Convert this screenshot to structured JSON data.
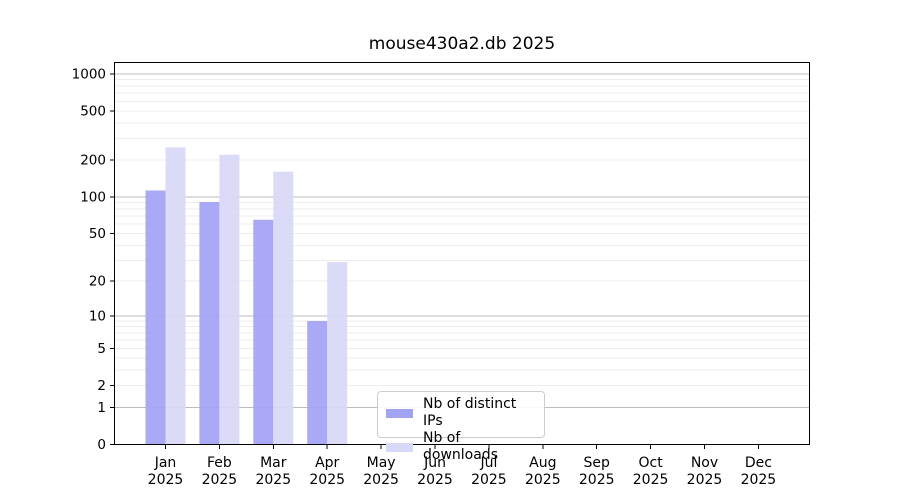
{
  "chart_data": {
    "type": "bar",
    "title": "mouse430a2.db 2025",
    "categories": [
      "Jan 2025",
      "Feb 2025",
      "Mar 2025",
      "Apr 2025",
      "May 2025",
      "Jun 2025",
      "Jul 2025",
      "Aug 2025",
      "Sep 2025",
      "Oct 2025",
      "Nov 2025",
      "Dec 2025"
    ],
    "series": [
      {
        "name": "Nb of distinct IPs",
        "color": "#a3a3f4",
        "values": [
          113,
          91,
          65,
          9,
          0,
          0,
          0,
          0,
          0,
          0,
          0,
          0
        ]
      },
      {
        "name": "Nb of downloads",
        "color": "#d8d8f8",
        "values": [
          254,
          221,
          161,
          29,
          0,
          0,
          0,
          0,
          0,
          0,
          0,
          0
        ]
      }
    ],
    "yscale": "log1p",
    "yticks": [
      0,
      1,
      2,
      5,
      10,
      20,
      50,
      100,
      200,
      500,
      1000
    ],
    "ylim": [
      0,
      1238
    ],
    "xlabel": "",
    "ylabel": "",
    "grid": true,
    "legend_position": "bottom-center",
    "colors": {
      "background": "#ffffff",
      "spine": "#000000",
      "grid_major": "#bdbdbd",
      "grid_minor": "#ededed",
      "tick_label": "#000000"
    }
  }
}
